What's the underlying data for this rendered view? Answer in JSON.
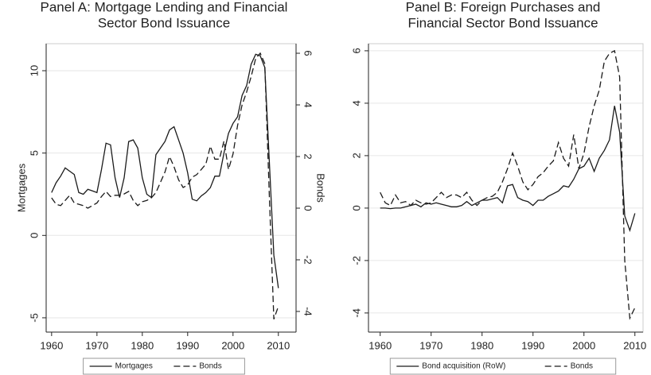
{
  "chart_data": [
    {
      "type": "line",
      "title": [
        "Panel A: Mortgage Lending and Financial",
        "Sector Bond Issuance"
      ],
      "ylabel": "Mortgages",
      "y2label": "Bonds",
      "x": [
        1960,
        1961,
        1962,
        1963,
        1964,
        1965,
        1966,
        1967,
        1968,
        1969,
        1970,
        1971,
        1972,
        1973,
        1974,
        1975,
        1976,
        1977,
        1978,
        1979,
        1980,
        1981,
        1982,
        1983,
        1984,
        1985,
        1986,
        1987,
        1988,
        1989,
        1990,
        1991,
        1992,
        1993,
        1994,
        1995,
        1996,
        1997,
        1998,
        1999,
        2000,
        2001,
        2002,
        2003,
        2004,
        2005,
        2006,
        2007,
        2008,
        2009,
        2010
      ],
      "xlim": [
        1958.8,
        2013.9
      ],
      "xticks": [
        1960,
        1970,
        1980,
        1990,
        2000,
        2010
      ],
      "ylim": [
        -5.87,
        11.64
      ],
      "yticks": [
        -5,
        0,
        5,
        10
      ],
      "y2lim": [
        -4.8,
        6.37
      ],
      "y2ticks": [
        -4,
        -2,
        0,
        2,
        4,
        6
      ],
      "grid": true,
      "legend": "bottom",
      "series": [
        {
          "name": "Mortgages",
          "color": "#1a1a1a",
          "style": "solid",
          "axis": "y",
          "values": [
            2.6,
            3.2,
            3.6,
            4.1,
            3.9,
            3.7,
            2.6,
            2.5,
            2.8,
            2.7,
            2.6,
            4.0,
            5.6,
            5.5,
            3.5,
            2.3,
            3.5,
            5.7,
            5.8,
            5.3,
            3.5,
            2.5,
            2.3,
            4.9,
            5.3,
            5.7,
            6.4,
            6.6,
            5.8,
            5.0,
            3.8,
            2.2,
            2.1,
            2.4,
            2.6,
            2.9,
            3.6,
            3.6,
            5.0,
            6.2,
            6.8,
            7.2,
            8.5,
            9.1,
            10.4,
            11.0,
            10.9,
            10.2,
            4.5,
            -1.2,
            -3.2
          ]
        },
        {
          "name": "Bonds",
          "color": "#1a1a1a",
          "style": "dashed",
          "axis": "y2",
          "values": [
            0.4,
            0.15,
            0.1,
            0.3,
            0.5,
            0.2,
            0.15,
            0.1,
            0.0,
            0.1,
            0.2,
            0.45,
            0.65,
            0.45,
            0.5,
            0.5,
            0.55,
            0.65,
            0.3,
            0.1,
            0.25,
            0.3,
            0.4,
            0.6,
            1.0,
            1.4,
            2.0,
            1.6,
            1.1,
            0.8,
            0.9,
            1.2,
            1.3,
            1.5,
            1.7,
            2.4,
            1.9,
            1.9,
            2.6,
            1.5,
            2.1,
            3.2,
            4.0,
            4.5,
            5.1,
            5.8,
            6.0,
            5.6,
            0.5,
            -4.3,
            -3.8
          ]
        }
      ]
    },
    {
      "type": "line",
      "title": [
        "Panel B: Foreign Purchases and",
        "Financial Sector Bond Issuance"
      ],
      "x": [
        1960,
        1961,
        1962,
        1963,
        1964,
        1965,
        1966,
        1967,
        1968,
        1969,
        1970,
        1971,
        1972,
        1973,
        1974,
        1975,
        1976,
        1977,
        1978,
        1979,
        1980,
        1981,
        1982,
        1983,
        1984,
        1985,
        1986,
        1987,
        1988,
        1989,
        1990,
        1991,
        1992,
        1993,
        1994,
        1995,
        1996,
        1997,
        1998,
        1999,
        2000,
        2001,
        2002,
        2003,
        2004,
        2005,
        2006,
        2007,
        2008,
        2009,
        2010
      ],
      "xlim": [
        1957.7,
        2011.6
      ],
      "xticks": [
        1960,
        1970,
        1980,
        1990,
        2000,
        2010
      ],
      "ylim": [
        -4.73,
        6.27
      ],
      "yticks": [
        -4,
        -2,
        0,
        2,
        4,
        6
      ],
      "grid": true,
      "legend": "bottom",
      "series": [
        {
          "name": "Bond acquisition (RoW)",
          "color": "#1a1a1a",
          "style": "solid",
          "axis": "y",
          "values": [
            0.0,
            0.0,
            -0.02,
            0.0,
            0.0,
            0.05,
            0.1,
            0.15,
            0.05,
            0.2,
            0.15,
            0.2,
            0.15,
            0.1,
            0.05,
            0.05,
            0.1,
            0.25,
            0.1,
            0.2,
            0.3,
            0.3,
            0.35,
            0.4,
            0.2,
            0.85,
            0.9,
            0.4,
            0.3,
            0.25,
            0.1,
            0.3,
            0.3,
            0.45,
            0.55,
            0.65,
            0.85,
            0.8,
            1.1,
            1.5,
            1.6,
            1.9,
            1.4,
            1.9,
            2.2,
            2.6,
            3.9,
            2.9,
            -0.3,
            -0.85,
            -0.2
          ]
        },
        {
          "name": "Bonds",
          "color": "#1a1a1a",
          "style": "dashed",
          "axis": "y",
          "values": [
            0.6,
            0.2,
            0.1,
            0.5,
            0.2,
            0.25,
            0.1,
            0.3,
            0.2,
            0.15,
            0.2,
            0.4,
            0.6,
            0.4,
            0.5,
            0.5,
            0.4,
            0.6,
            0.3,
            0.1,
            0.3,
            0.4,
            0.45,
            0.6,
            1.0,
            1.5,
            2.1,
            1.6,
            1.0,
            0.7,
            0.9,
            1.2,
            1.35,
            1.6,
            1.8,
            2.5,
            1.9,
            1.6,
            2.8,
            1.5,
            2.1,
            3.1,
            3.9,
            4.5,
            5.6,
            5.9,
            6.0,
            5.0,
            -2.0,
            -4.2,
            -3.8
          ]
        }
      ]
    }
  ]
}
